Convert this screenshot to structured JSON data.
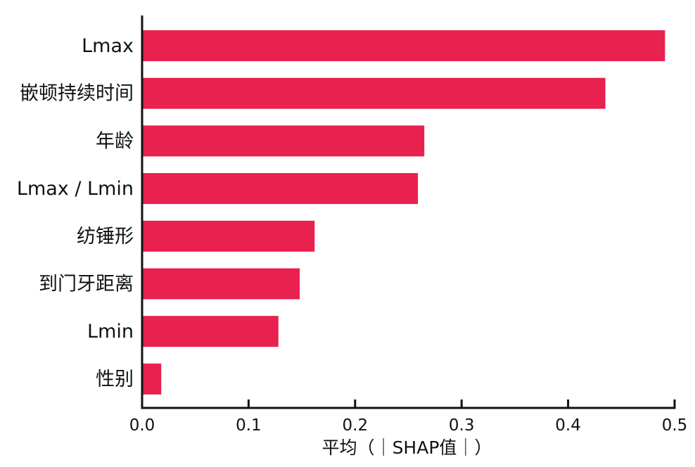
{
  "chart_data": {
    "type": "bar",
    "orientation": "horizontal",
    "categories": [
      "Lmax",
      "嵌顿持续时间",
      "年龄",
      "Lmax / Lmin",
      "纺锤形",
      "到门牙距离",
      "Lmin",
      "性别"
    ],
    "values": [
      0.491,
      0.435,
      0.265,
      0.259,
      0.162,
      0.148,
      0.128,
      0.018
    ],
    "xlabel": "平均（｜SHAP值｜）",
    "ylabel": "",
    "xlim": [
      0.0,
      0.5
    ],
    "xticks": [
      "0.0",
      "0.1",
      "0.2",
      "0.3",
      "0.4",
      "0.5"
    ],
    "bar_color": "#e8214f",
    "grid": false
  }
}
